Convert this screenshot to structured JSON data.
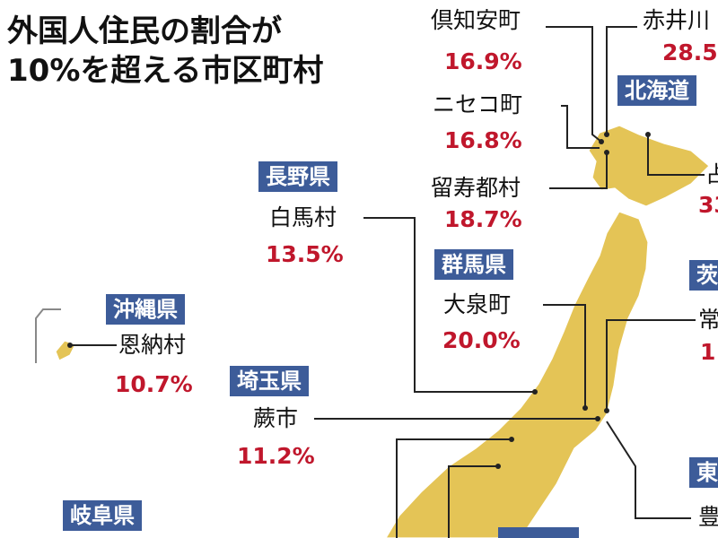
{
  "title": [
    "外国人住民の割合が",
    "10%を超える市区町村"
  ],
  "callouts": [
    {
      "municipality": "倶知安町",
      "share": "16.9%"
    },
    {
      "municipality": "赤井川",
      "share": "28.5"
    },
    {
      "prefecture": "北海道"
    },
    {
      "municipality": "ニセコ町",
      "share": "16.8%"
    },
    {
      "municipality": "占",
      "share": "33"
    },
    {
      "municipality": "留寿都村",
      "share": "18.7%"
    },
    {
      "prefecture": "長野県",
      "municipality": "白馬村",
      "share": "13.5%"
    },
    {
      "prefecture": "群馬県",
      "municipality": "大泉町",
      "share": "20.0%"
    },
    {
      "prefecture": "茨",
      "municipality": "常",
      "share": "1"
    },
    {
      "prefecture": "沖縄県",
      "municipality": "恩納村",
      "share": "10.7%"
    },
    {
      "prefecture": "埼玉県",
      "municipality": "蕨市",
      "share": "11.2%"
    },
    {
      "prefecture": "東",
      "municipality": "豊"
    },
    {
      "prefecture": "岐阜県"
    }
  ]
}
